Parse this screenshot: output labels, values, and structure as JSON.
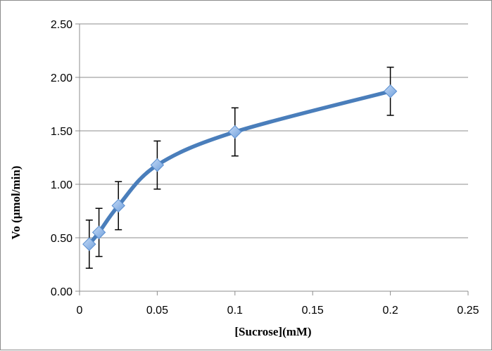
{
  "chart_data": {
    "type": "scatter",
    "title": "",
    "xlabel": "[Sucrose](mM)",
    "ylabel": "Vo (μmol/min)",
    "xlim": [
      0,
      0.25
    ],
    "ylim": [
      0,
      2.5
    ],
    "x_ticks": [
      "0",
      "0.05",
      "0.1",
      "0.15",
      "0.2",
      "0.25"
    ],
    "y_ticks": [
      "0.00",
      "0.50",
      "1.00",
      "1.50",
      "2.00",
      "2.50"
    ],
    "grid": "horizontal",
    "legend": "none",
    "series": [
      {
        "x": [
          0.00625,
          0.0125,
          0.025,
          0.05,
          0.1,
          0.2
        ],
        "y": [
          0.44,
          0.55,
          0.8,
          1.18,
          1.49,
          1.87
        ],
        "error": [
          0.225,
          0.225,
          0.225,
          0.225,
          0.225,
          0.225
        ],
        "marker": "diamond",
        "line": "smooth",
        "color": "#4a7ebb",
        "marker_color": "#8db4e2"
      }
    ]
  }
}
